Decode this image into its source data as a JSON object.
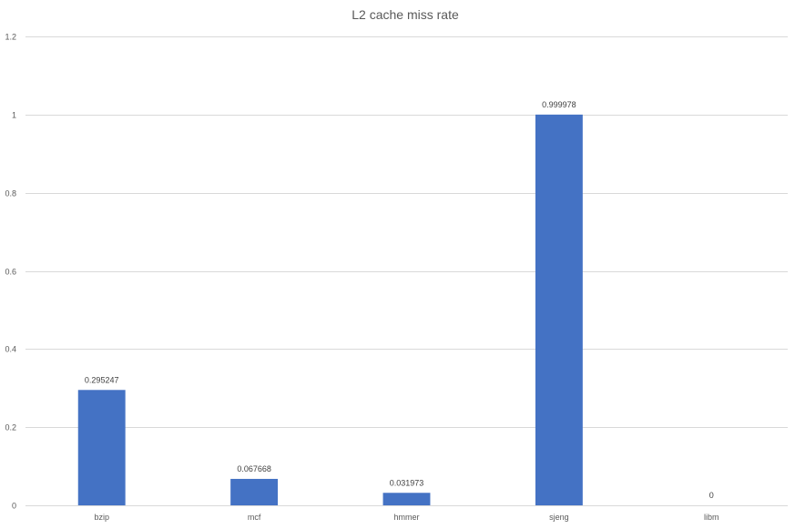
{
  "chart_data": {
    "type": "bar",
    "title": "L2 cache miss rate",
    "categories": [
      "bzip",
      "mcf",
      "hmmer",
      "sjeng",
      "libm"
    ],
    "values": [
      0.295247,
      0.067668,
      0.031973,
      0.999978,
      0
    ],
    "data_labels": [
      "0.295247",
      "0.067668",
      "0.031973",
      "0.999978",
      "0"
    ],
    "xlabel": "",
    "ylabel": "",
    "ylim": [
      0,
      1.2
    ],
    "yticks": [
      0,
      0.2,
      0.4,
      0.6,
      0.8,
      1,
      1.2
    ],
    "ytick_labels": [
      "0",
      "0.2",
      "0.4",
      "0.6",
      "0.8",
      "1",
      "1.2"
    ],
    "grid": true,
    "legend": "none",
    "bar_color": "#4472c4"
  }
}
